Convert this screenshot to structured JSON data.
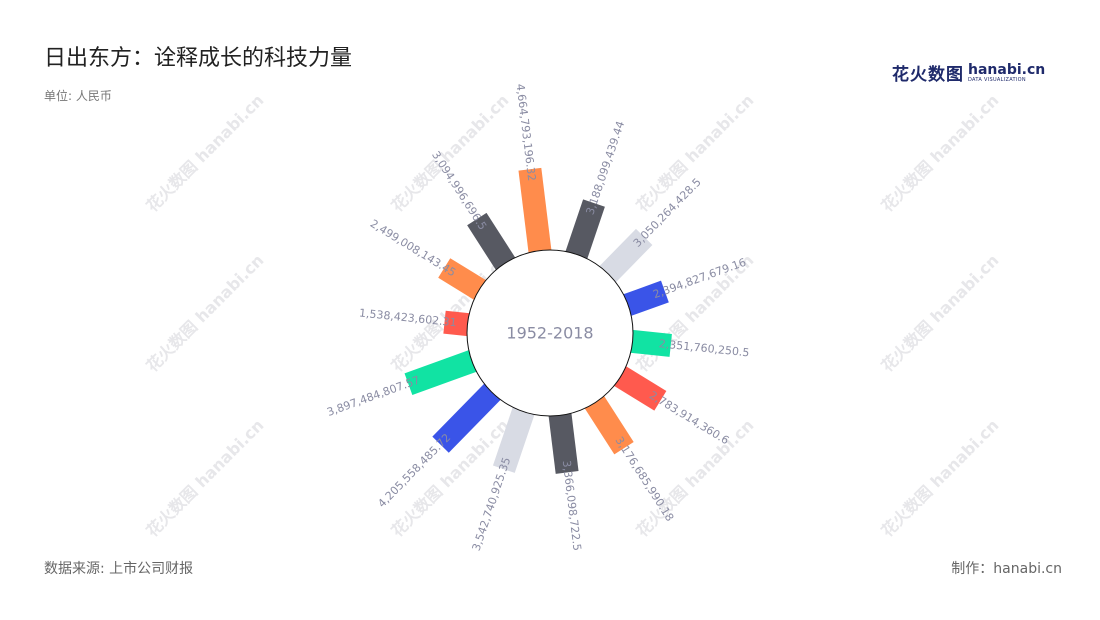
{
  "title": "日出东方：诠释成长的科技力量",
  "unit": "单位: 人民币",
  "source": "数据来源: 上市公司财报",
  "credit": "制作：hanabi.cn",
  "logo": {
    "cn": "花火数图",
    "en": "hanabi.cn",
    "sub": "DATA VISUALIZATION"
  },
  "watermark": "花火数图 hanabi.cn",
  "chart_data": {
    "type": "bar",
    "layout": "radial",
    "center_label": "1952-2018",
    "series": [
      {
        "values": [
          4664793196.32,
          3188099439.44,
          3050264428.5,
          2394827679.16,
          2351760250.5,
          2783914360.6,
          3176685990.18,
          3366098722.5,
          3542740925.35,
          4205558485.72,
          3897484807.57,
          1538423602.31,
          2499008143.45,
          3094996696.5
        ],
        "labels": [
          "4,664,793,196.32",
          "3,188,099,439.44",
          "3,050,264,428.5",
          "2,394,827,679.16",
          "2,351,760,250.5",
          "2,783,914,360.6",
          "3,176,685,990.18",
          "3,366,098,722.5",
          "3,542,740,925.35",
          "4,205,558,485.72",
          "3,897,484,807.57",
          "1,538,423,602.31",
          "2,499,008,143.45",
          "3,094,996,696.5"
        ]
      }
    ],
    "colors": [
      "#FF8C4C",
      "#575962",
      "#D8DBE4",
      "#3A54E8",
      "#11E3A3",
      "#FF5A4E"
    ],
    "label_color": "#8a8ca3"
  }
}
